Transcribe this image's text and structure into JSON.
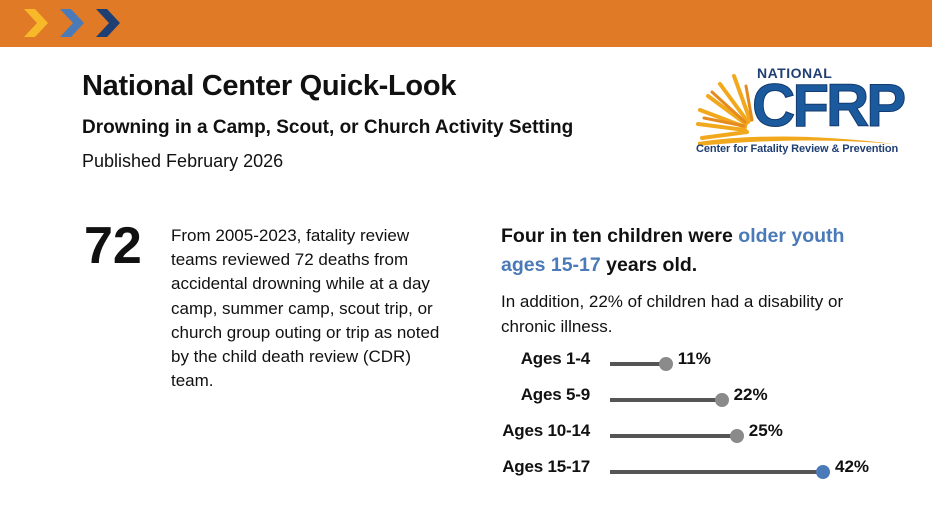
{
  "header": {
    "bar_color": "#e07a27",
    "chevron_icons": [
      "chevron-right-icon-yellow",
      "chevron-right-icon-blue",
      "chevron-right-icon-navy"
    ]
  },
  "document": {
    "title": "National Center Quick-Look",
    "subtitle": "Drowning in a Camp, Scout, or Church Activity Setting",
    "published": "Published February 2026"
  },
  "logo": {
    "name_top": "NATIONAL",
    "name_main": "CFRP",
    "tagline": "Center for Fatality Review & Prevention",
    "brand_color": "#1c5a9e",
    "sun_color": "#f2a81d"
  },
  "stat": {
    "number": "72",
    "description": "From 2005-2023, fatality review teams reviewed 72 deaths from accidental drowning while at a day camp, summer camp, scout trip, or church group outing or trip as noted by the child death review (CDR) team."
  },
  "headline": {
    "part1": "Four in ten children were ",
    "highlight": "older youth ages 15-17",
    "part2": " years old.",
    "highlight_color": "#4a7ab8"
  },
  "addition": "In addition, 22% of children had a disability or chronic illness.",
  "chart_data": {
    "type": "bar",
    "title": "",
    "categories": [
      "Ages 1-4",
      "Ages 5-9",
      "Ages 10-14",
      "Ages 15-17"
    ],
    "values": [
      11,
      22,
      25,
      42
    ],
    "value_labels": [
      "11%",
      "22%",
      "25%",
      "42%"
    ],
    "highlight_index": 3,
    "highlight_color": "#4a7ab8",
    "default_dot_color": "#8a8a8a",
    "bar_color": "#555555",
    "xlim": [
      0,
      42
    ],
    "xlabel": "",
    "ylabel": ""
  }
}
